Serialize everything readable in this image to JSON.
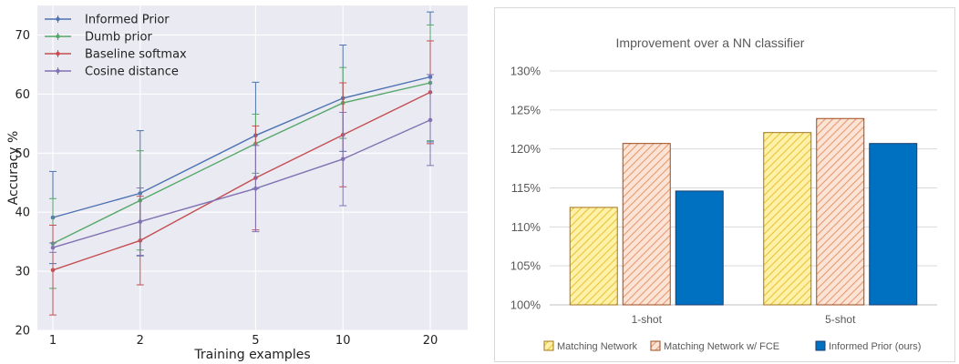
{
  "chart_data": [
    {
      "type": "line",
      "title": "",
      "xlabel": "Training examples",
      "ylabel": "Accuracy %",
      "x": [
        1,
        2,
        5,
        10,
        20
      ],
      "x_tick_labels": [
        "1",
        "2",
        "5",
        "10",
        "20"
      ],
      "x_scale": "log",
      "ylim": [
        20,
        75
      ],
      "y_ticks": [
        20,
        30,
        40,
        50,
        60,
        70
      ],
      "grid": true,
      "legend_position": "top-left",
      "series": [
        {
          "name": "Informed Prior",
          "color": "#4c72b0",
          "values": [
            39.1,
            43.2,
            53.0,
            59.3,
            62.9
          ],
          "error": [
            7.8,
            10.6,
            9.0,
            9.0,
            11.0
          ]
        },
        {
          "name": "Dumb prior",
          "color": "#55a868",
          "values": [
            34.7,
            42.0,
            51.6,
            58.5,
            61.9
          ],
          "error": [
            7.6,
            8.4,
            5.0,
            6.0,
            9.8
          ]
        },
        {
          "name": "Baseline softmax",
          "color": "#c44e52",
          "values": [
            30.2,
            35.2,
            45.8,
            53.1,
            60.3
          ],
          "error": [
            7.6,
            7.5,
            8.8,
            8.8,
            8.7
          ]
        },
        {
          "name": "Cosine distance",
          "color": "#8172b2",
          "values": [
            34.0,
            38.4,
            44.0,
            49.0,
            55.6
          ],
          "error": [
            0.8,
            5.7,
            7.3,
            7.9,
            7.7
          ]
        }
      ]
    },
    {
      "type": "bar",
      "title": "Improvement over a NN classifier",
      "xlabel": "",
      "ylabel": "",
      "categories": [
        "1-shot",
        "5-shot"
      ],
      "ylim": [
        100,
        130
      ],
      "y_ticks": [
        100,
        105,
        110,
        115,
        120,
        125,
        130
      ],
      "y_tick_labels": [
        "100%",
        "105%",
        "110%",
        "115%",
        "120%",
        "125%",
        "130%"
      ],
      "grid": true,
      "legend_position": "bottom",
      "series": [
        {
          "name": "Matching Network",
          "color": "#fff2a8",
          "edge": "#a3751b",
          "pattern": "hatch-yellow",
          "values": [
            112.5,
            122.1
          ]
        },
        {
          "name": "Matching Network w/ FCE",
          "color": "#fbe3d6",
          "edge": "#9c4a1c",
          "pattern": "hatch-orange",
          "values": [
            120.7,
            123.9
          ]
        },
        {
          "name": "Informed Prior (ours)",
          "color": "#0070c0",
          "edge": "#1f3d6b",
          "pattern": "solid",
          "values": [
            114.6,
            120.7
          ]
        }
      ]
    }
  ]
}
